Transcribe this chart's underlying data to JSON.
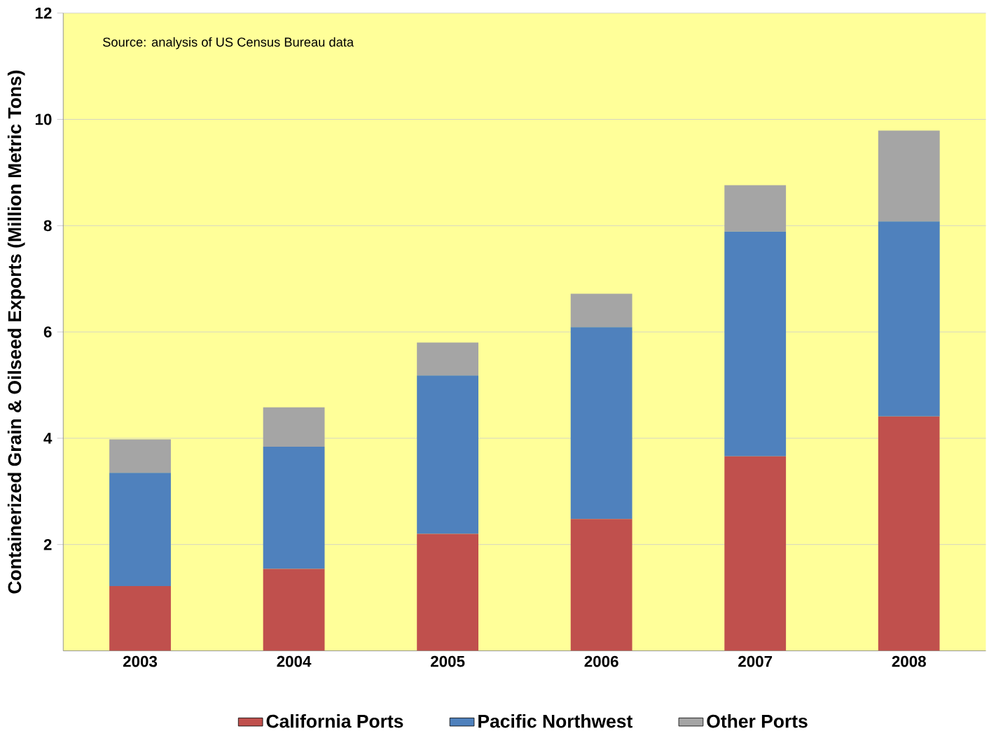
{
  "chart_data": {
    "type": "bar",
    "stacked": true,
    "ylabel": "Containerized Grain & Oilseed Exports (Million Metric Tons)",
    "annotations": [
      "Source: analysis of US Census Bureau data"
    ],
    "categories": [
      "2003",
      "2004",
      "2005",
      "2006",
      "2007",
      "2008"
    ],
    "series": [
      {
        "name": "California Ports",
        "color": "#c0504d",
        "values": [
          1.22,
          1.54,
          2.2,
          2.48,
          3.66,
          4.41
        ]
      },
      {
        "name": "Pacific Northwest",
        "color": "#4f81bd",
        "values": [
          2.13,
          2.3,
          2.98,
          3.61,
          4.23,
          3.67
        ]
      },
      {
        "name": "Other Ports",
        "color": "#a5a5a5",
        "values": [
          0.63,
          0.74,
          0.62,
          0.63,
          0.87,
          1.71
        ]
      }
    ],
    "ylim": [
      0,
      12
    ],
    "yticks": [
      2,
      4,
      6,
      8,
      10,
      12
    ],
    "grid": "y",
    "legend": "bottom"
  }
}
